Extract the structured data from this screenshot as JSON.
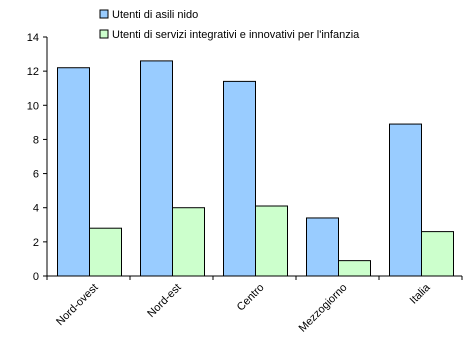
{
  "chart_data": {
    "type": "bar",
    "categories": [
      "Nord-ovest",
      "Nord-est",
      "Centro",
      "Mezzogiorno",
      "Italia"
    ],
    "series": [
      {
        "name": "Utenti di asili nido",
        "values": [
          12.2,
          12.6,
          11.4,
          3.4,
          8.9
        ],
        "color": "#99ccff"
      },
      {
        "name": "Utenti di servizi integrativi e innovativi per l'infanzia",
        "values": [
          2.8,
          4.0,
          4.1,
          0.9,
          2.6
        ],
        "color": "#ccffcc"
      }
    ],
    "yticks": [
      "0",
      "2",
      "4",
      "6",
      "8",
      "10",
      "12",
      "14"
    ],
    "ylim": [
      0,
      14
    ],
    "grid": false,
    "legend_position": "top-center",
    "title": "",
    "xlabel": "",
    "ylabel": ""
  }
}
